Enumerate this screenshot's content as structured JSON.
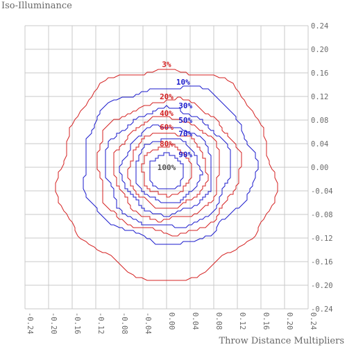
{
  "chart_data": {
    "type": "contour",
    "title": "Iso-Illuminance",
    "xlabel": "Throw Distance Multipliers",
    "ylabel": "",
    "xlim": [
      -0.24,
      0.24
    ],
    "ylim": [
      -0.24,
      0.24
    ],
    "grid": true,
    "x_ticks": [
      "-0.24",
      "-0.20",
      "-0.16",
      "-0.12",
      "-0.08",
      "-0.04",
      "0.00",
      "0.04",
      "0.08",
      "0.12",
      "0.16",
      "0.20",
      "0.24"
    ],
    "y_ticks": [
      "0.24",
      "0.20",
      "0.16",
      "0.12",
      "0.08",
      "0.04",
      "0.00",
      "-0.04",
      "-0.08",
      "-0.12",
      "-0.16",
      "-0.20",
      "-0.24"
    ],
    "contours": [
      {
        "label": "3%",
        "color": "#d42020",
        "center": [
          0.0,
          -0.01
        ],
        "rx": 0.182,
        "ry": 0.178,
        "label_at": [
          0.0,
          0.175
        ]
      },
      {
        "label": "10%",
        "color": "#1a1acc",
        "center": [
          0.003,
          0.005
        ],
        "rx": 0.145,
        "ry": 0.133,
        "label_at": [
          0.028,
          0.145
        ]
      },
      {
        "label": "20%",
        "color": "#d42020",
        "center": [
          0.002,
          0.0
        ],
        "rx": 0.121,
        "ry": 0.113,
        "label_at": [
          0.0,
          0.12
        ]
      },
      {
        "label": "30%",
        "color": "#1a1acc",
        "center": [
          0.002,
          -0.003
        ],
        "rx": 0.105,
        "ry": 0.1,
        "label_at": [
          0.032,
          0.105
        ]
      },
      {
        "label": "40%",
        "color": "#d42020",
        "center": [
          0.002,
          -0.003
        ],
        "rx": 0.09,
        "ry": 0.087,
        "label_at": [
          0.0,
          0.092
        ]
      },
      {
        "label": "50%",
        "color": "#1a1acc",
        "center": [
          0.002,
          -0.005
        ],
        "rx": 0.077,
        "ry": 0.075,
        "label_at": [
          0.032,
          0.08
        ]
      },
      {
        "label": "60%",
        "color": "#d42020",
        "center": [
          0.002,
          -0.005
        ],
        "rx": 0.066,
        "ry": 0.064,
        "label_at": [
          0.0,
          0.068
        ]
      },
      {
        "label": "70%",
        "color": "#1a1acc",
        "center": [
          0.002,
          -0.006
        ],
        "rx": 0.055,
        "ry": 0.054,
        "label_at": [
          0.032,
          0.057
        ]
      },
      {
        "label": "80%",
        "color": "#d42020",
        "center": [
          0.0,
          -0.006
        ],
        "rx": 0.042,
        "ry": 0.042,
        "label_at": [
          0.0,
          0.04
        ]
      },
      {
        "label": "90%",
        "color": "#1a1acc",
        "center": [
          0.0,
          -0.008
        ],
        "rx": 0.03,
        "ry": 0.03,
        "label_at": [
          0.032,
          0.022
        ]
      },
      {
        "label": "100%",
        "color": "#555555",
        "center": [
          0.0,
          0.0
        ],
        "rx": 0.0,
        "ry": 0.0,
        "label_at": [
          0.0,
          0.0
        ]
      }
    ]
  }
}
